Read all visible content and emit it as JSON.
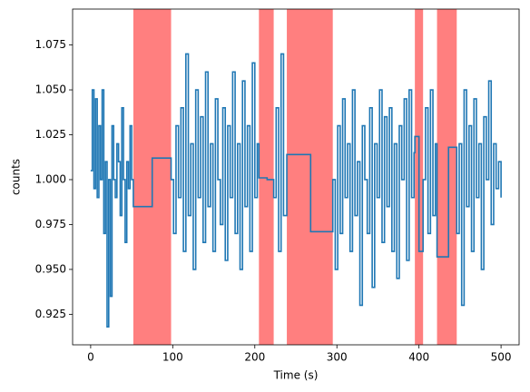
{
  "chart_data": {
    "type": "step",
    "xlabel": "Time (s)",
    "ylabel": "counts",
    "xlim": [
      -22,
      522
    ],
    "ylim": [
      0.908,
      1.095
    ],
    "xticks": [
      0,
      100,
      200,
      300,
      400,
      500
    ],
    "yticks": [
      0.925,
      {
        "value": 0.95,
        "label": "0.950"
      },
      0.975,
      {
        "value": 1.0,
        "label": "1.000"
      },
      1.025,
      {
        "value": 1.05,
        "label": "1.050"
      },
      1.075
    ],
    "spans": [
      [
        52,
        98
      ],
      [
        205,
        223
      ],
      [
        239,
        295
      ],
      [
        395,
        405
      ],
      [
        422,
        446
      ]
    ],
    "span_color": "#ff7f7f",
    "x": [
      0,
      2,
      4,
      6,
      8,
      10,
      12,
      14,
      16,
      18,
      20,
      22,
      24,
      26,
      28,
      30,
      32,
      34,
      36,
      38,
      40,
      42,
      44,
      46,
      48,
      50,
      52,
      75,
      98,
      101,
      104,
      107,
      110,
      113,
      116,
      119,
      122,
      125,
      128,
      131,
      134,
      137,
      140,
      143,
      146,
      149,
      152,
      155,
      158,
      161,
      164,
      167,
      170,
      173,
      176,
      179,
      182,
      185,
      188,
      191,
      194,
      197,
      200,
      203,
      205,
      215,
      223,
      226,
      229,
      232,
      235,
      239,
      268,
      295,
      298,
      301,
      304,
      307,
      310,
      313,
      316,
      319,
      322,
      325,
      328,
      331,
      334,
      337,
      340,
      343,
      346,
      349,
      352,
      355,
      358,
      361,
      364,
      367,
      370,
      373,
      376,
      379,
      382,
      385,
      388,
      391,
      394,
      395,
      400,
      405,
      408,
      411,
      414,
      417,
      420,
      422,
      436,
      446,
      449,
      452,
      455,
      458,
      461,
      464,
      467,
      470,
      473,
      476,
      479,
      482,
      485,
      488,
      491,
      494,
      497,
      500
    ],
    "series": [
      {
        "name": "counts",
        "color": "#1f77b4",
        "values": [
          1.005,
          1.05,
          0.995,
          1.045,
          0.99,
          1.03,
          1.0,
          1.05,
          0.97,
          1.01,
          0.918,
          1.0,
          0.935,
          1.03,
          1.0,
          0.99,
          1.02,
          1.01,
          0.98,
          1.04,
          1.0,
          0.965,
          1.01,
          0.995,
          1.03,
          1.0,
          0.985,
          1.012,
          1.0,
          0.97,
          1.03,
          0.99,
          1.04,
          0.96,
          1.07,
          0.98,
          1.02,
          0.95,
          1.05,
          0.99,
          1.035,
          0.965,
          1.06,
          0.985,
          1.02,
          0.96,
          1.045,
          1.0,
          0.975,
          1.04,
          0.955,
          1.03,
          0.99,
          1.06,
          0.97,
          1.02,
          0.95,
          1.055,
          0.985,
          1.03,
          0.96,
          1.065,
          0.99,
          1.02,
          1.001,
          1.0,
          0.99,
          1.04,
          0.96,
          1.07,
          0.98,
          1.014,
          0.971,
          1.0,
          0.95,
          1.03,
          0.97,
          1.045,
          0.99,
          1.02,
          0.96,
          1.05,
          0.98,
          1.01,
          0.93,
          1.03,
          1.0,
          0.97,
          1.04,
          0.94,
          1.02,
          0.99,
          1.05,
          0.965,
          1.035,
          0.985,
          1.04,
          0.96,
          1.02,
          0.945,
          1.03,
          1.0,
          1.045,
          0.955,
          1.05,
          0.99,
          1.015,
          1.024,
          0.96,
          1.0,
          1.04,
          0.97,
          1.05,
          0.98,
          1.02,
          0.957,
          1.018,
          0.97,
          1.02,
          0.93,
          1.05,
          0.985,
          1.03,
          0.96,
          1.045,
          0.99,
          1.02,
          0.95,
          1.035,
          1.0,
          1.055,
          0.975,
          1.02,
          0.995,
          1.01,
          0.99
        ]
      }
    ]
  }
}
